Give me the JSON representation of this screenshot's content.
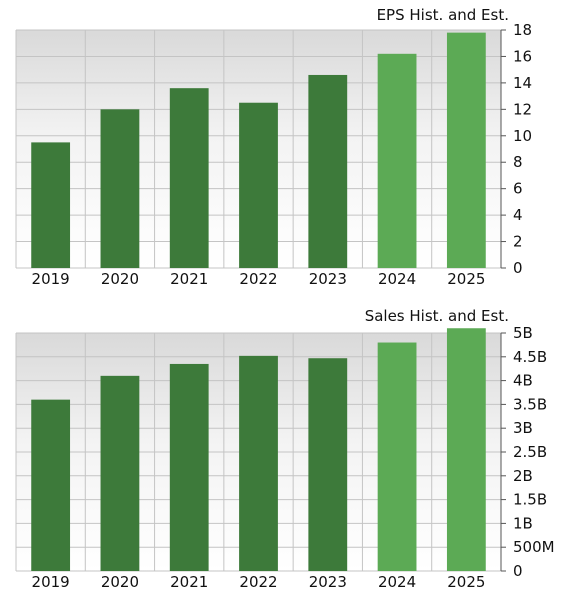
{
  "chart_data": [
    {
      "type": "bar",
      "title": "EPS Hist. and Est.",
      "categories": [
        "2019",
        "2020",
        "2021",
        "2022",
        "2023",
        "2024",
        "2025"
      ],
      "values": [
        9.5,
        12.0,
        13.6,
        12.5,
        14.6,
        16.2,
        17.8
      ],
      "estimate_flags": [
        false,
        false,
        false,
        false,
        false,
        true,
        true
      ],
      "ylim": [
        0,
        18
      ],
      "yticks": [
        0,
        2,
        4,
        6,
        8,
        10,
        12,
        14,
        16,
        18
      ],
      "ytick_labels": [
        "0",
        "2",
        "4",
        "6",
        "8",
        "10",
        "12",
        "14",
        "16",
        "18"
      ],
      "y_axis_side": "right",
      "grid": true,
      "colors": {
        "historical": "#3d7a3a",
        "estimate": "#5caa55"
      }
    },
    {
      "type": "bar",
      "title": "Sales Hist. and Est.",
      "categories": [
        "2019",
        "2020",
        "2021",
        "2022",
        "2023",
        "2024",
        "2025"
      ],
      "values": [
        3.6,
        4.1,
        4.35,
        4.52,
        4.47,
        4.8,
        5.1
      ],
      "value_unit": "billions",
      "estimate_flags": [
        false,
        false,
        false,
        false,
        false,
        true,
        true
      ],
      "ylim": [
        0,
        5
      ],
      "yticks": [
        0,
        0.5,
        1,
        1.5,
        2,
        2.5,
        3,
        3.5,
        4,
        4.5,
        5
      ],
      "ytick_labels": [
        "0",
        "500M",
        "1B",
        "1.5B",
        "2B",
        "2.5B",
        "3B",
        "3.5B",
        "4B",
        "4.5B",
        "5B"
      ],
      "y_axis_side": "right",
      "grid": true,
      "colors": {
        "historical": "#3d7a3a",
        "estimate": "#5caa55"
      }
    }
  ]
}
